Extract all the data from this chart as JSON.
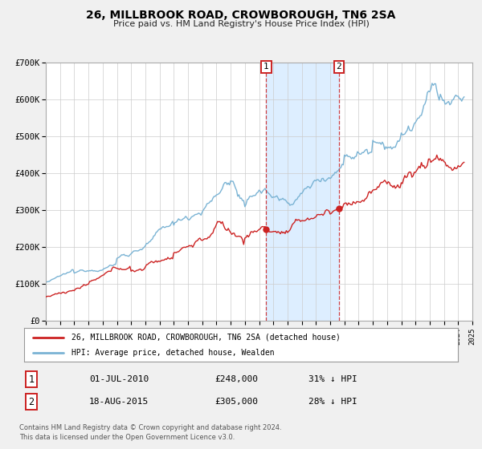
{
  "title": "26, MILLBROOK ROAD, CROWBOROUGH, TN6 2SA",
  "subtitle": "Price paid vs. HM Land Registry's House Price Index (HPI)",
  "legend1": "26, MILLBROOK ROAD, CROWBOROUGH, TN6 2SA (detached house)",
  "legend2": "HPI: Average price, detached house, Wealden",
  "annotation1_date": "01-JUL-2010",
  "annotation1_price": "£248,000",
  "annotation1_hpi": "31% ↓ HPI",
  "annotation2_date": "18-AUG-2015",
  "annotation2_price": "£305,000",
  "annotation2_hpi": "28% ↓ HPI",
  "footer": "Contains HM Land Registry data © Crown copyright and database right 2024.\nThis data is licensed under the Open Government Licence v3.0.",
  "sale1_year": 2010.5,
  "sale1_value": 248000,
  "sale2_year": 2015.62,
  "sale2_value": 305000,
  "xmin": 1995,
  "xmax": 2025,
  "ymin": 0,
  "ymax": 700000,
  "hpi_color": "#7ab3d4",
  "price_color": "#cc2222",
  "background_color": "#f0f0f0",
  "plot_bg_color": "#ffffff",
  "shade_color": "#ddeeff",
  "grid_color": "#cccccc",
  "spine_color": "#aaaaaa"
}
